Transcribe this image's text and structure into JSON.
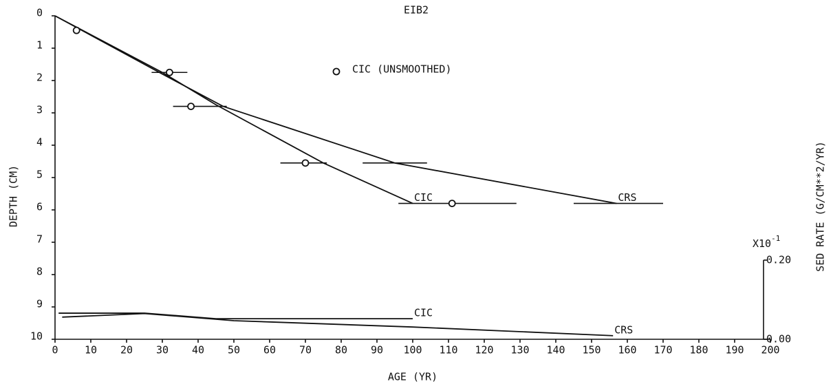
{
  "chart_data": {
    "type": "line",
    "title": "EIB2",
    "xlabel": "AGE (YR)",
    "ylabel": "DEPTH (CM)",
    "y2label": "SED RATE (G/CM**2/YR)",
    "y2_multiplier": {
      "base": "X10",
      "exponent": "-1"
    },
    "xlim": [
      0,
      200
    ],
    "xticks": [
      0,
      10,
      20,
      30,
      40,
      50,
      60,
      70,
      80,
      90,
      100,
      110,
      120,
      130,
      140,
      150,
      160,
      170,
      180,
      190,
      200
    ],
    "ylim": [
      10,
      0
    ],
    "yticks": [
      0,
      1,
      2,
      3,
      4,
      5,
      6,
      7,
      8,
      9,
      10
    ],
    "y2lim": [
      0,
      0.2
    ],
    "y2ticks": [
      {
        "value": 0,
        "label": "0.00"
      },
      {
        "value": 0.2,
        "label": "0.20"
      }
    ],
    "grid": false,
    "series": [
      {
        "name": "CIC",
        "color": "#111111",
        "axis": "y",
        "x": [
          0,
          30,
          45,
          75,
          100
        ],
        "values": [
          0,
          1.75,
          2.75,
          4.55,
          5.8
        ]
      },
      {
        "name": "CRS",
        "color": "#111111",
        "axis": "y",
        "x": [
          0,
          30,
          47,
          95,
          157
        ],
        "values": [
          0,
          1.8,
          2.8,
          4.55,
          5.8
        ],
        "error_bars": {
          "y": [
            4.55,
            5.8
          ],
          "low": [
            86,
            145
          ],
          "high": [
            104,
            170
          ]
        }
      },
      {
        "name": "CIC (UNSMOOTHED)",
        "color": "#111111",
        "axis": "y",
        "marker": "circle",
        "x": [
          6,
          32,
          38,
          70,
          111
        ],
        "values": [
          0.45,
          1.75,
          2.8,
          4.55,
          5.8
        ],
        "xerr_low": [
          null,
          27,
          33,
          63,
          96
        ],
        "xerr_high": [
          null,
          37,
          48,
          76,
          129
        ]
      },
      {
        "name": "CIC",
        "color": "#111111",
        "axis": "y2",
        "x": [
          1,
          25,
          45,
          100
        ],
        "values": [
          0.066,
          0.066,
          0.052,
          0.052
        ]
      },
      {
        "name": "CRS",
        "color": "#111111",
        "axis": "y2",
        "x": [
          2,
          25,
          50,
          100,
          156
        ],
        "values": [
          0.056,
          0.065,
          0.047,
          0.031,
          0.009
        ]
      }
    ]
  }
}
